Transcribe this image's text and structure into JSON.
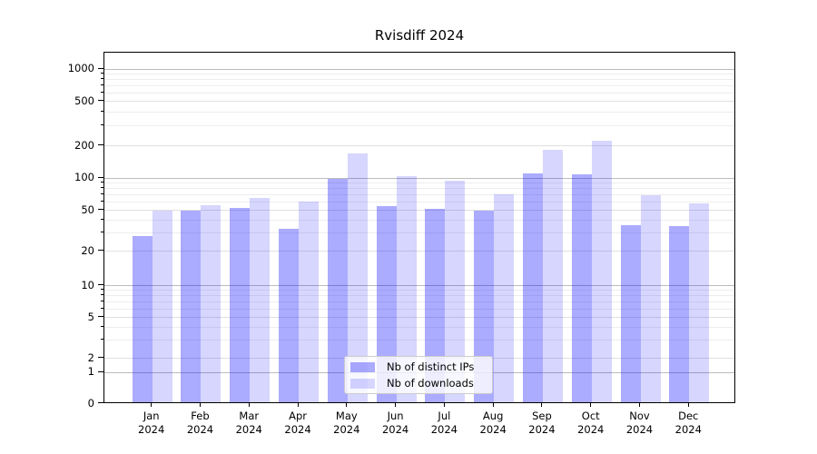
{
  "title": "Rvisdiff 2024",
  "legend": {
    "items": [
      {
        "label": "Nb of distinct IPs",
        "swatch": "dark-blue-bar"
      },
      {
        "label": "Nb of downloads",
        "swatch": "light-blue-bar"
      }
    ]
  },
  "chart_data": {
    "type": "bar",
    "title": "Rvisdiff 2024",
    "categories": [
      "Jan",
      "Feb",
      "Mar",
      "Apr",
      "May",
      "Jun",
      "Jul",
      "Aug",
      "Sep",
      "Oct",
      "Nov",
      "Dec"
    ],
    "year_label": "2024",
    "series": [
      {
        "name": "Nb of distinct IPs",
        "color": "rgba(0,0,255,0.33)",
        "values": [
          27,
          48,
          51,
          32,
          95,
          53,
          50,
          48,
          107,
          105,
          35,
          34
        ]
      },
      {
        "name": "Nb of downloads",
        "color": "rgba(0,0,255,0.16)",
        "values": [
          48,
          54,
          63,
          58,
          165,
          102,
          91,
          68,
          178,
          215,
          67,
          56
        ]
      }
    ],
    "yscale": "symlog",
    "ylim": [
      0,
      1000
    ],
    "yticks": [
      0,
      1,
      2,
      5,
      10,
      20,
      50,
      100,
      200,
      500,
      1000
    ],
    "ytick_labels": [
      "0",
      "1",
      "2",
      "5",
      "10",
      "20",
      "50",
      "100",
      "200",
      "500",
      "1000"
    ],
    "minor_grid_values": [
      3,
      4,
      6,
      7,
      8,
      9,
      30,
      40,
      60,
      70,
      80,
      90,
      300,
      400,
      600,
      700,
      800,
      900
    ],
    "grid": true,
    "legend_position": "lower center inside",
    "xlabel": "",
    "ylabel": ""
  }
}
